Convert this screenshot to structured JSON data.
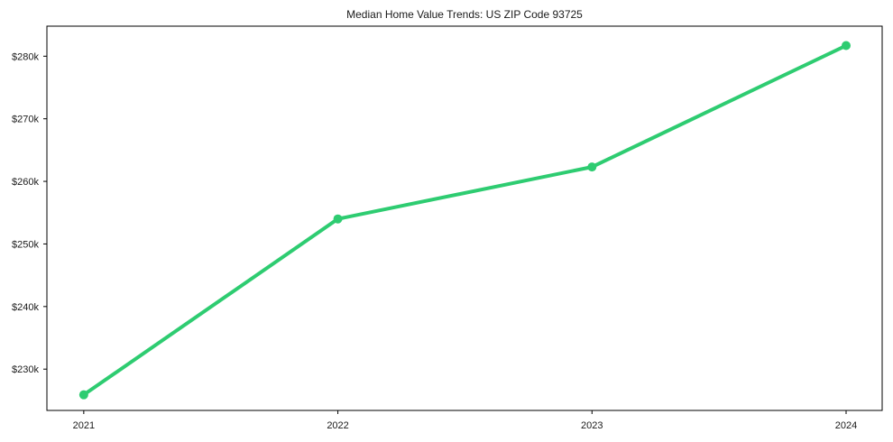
{
  "chart_data": {
    "type": "line",
    "title": "Median Home Value Trends: US ZIP Code 93725",
    "x": [
      2021,
      2022,
      2023,
      2024
    ],
    "xtick_labels": [
      "2021",
      "2022",
      "2023",
      "2024"
    ],
    "series": [
      {
        "name": "median-home-value",
        "values": [
          225900,
          254000,
          262300,
          281700
        ],
        "color": "#2ecc71"
      }
    ],
    "ytick_values": [
      230000,
      240000,
      250000,
      260000,
      270000,
      280000
    ],
    "ytick_labels": [
      "$230k",
      "$240k",
      "$250k",
      "$260k",
      "$270k",
      "$280k"
    ],
    "xlim": [
      2020.855,
      2024.142
    ],
    "ylim": [
      223400,
      284800
    ],
    "xlabel": "",
    "ylabel": "",
    "grid": false,
    "legend": "none",
    "line_width": 4,
    "marker": "circle",
    "marker_radius": 5
  },
  "colors": {
    "line": "#2ecc71",
    "text": "#1a1a1a",
    "axis": "#000000",
    "background": "#ffffff"
  }
}
